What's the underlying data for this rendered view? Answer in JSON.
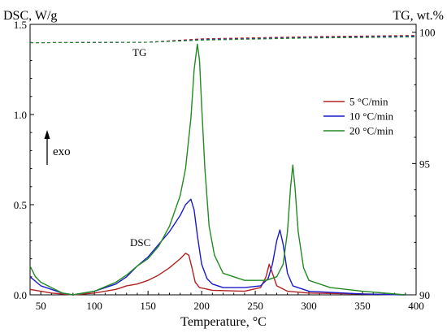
{
  "chart_data": {
    "type": "line",
    "xlabel": "Temperature, °C",
    "ylabel_left": "DSC, W/g",
    "ylabel_right": "TG, wt.%",
    "xlim": [
      40,
      400
    ],
    "ylim_left": [
      0,
      1.5
    ],
    "ylim_right": [
      90,
      100.3
    ],
    "x_ticks": [
      50,
      100,
      150,
      200,
      250,
      300,
      350,
      400
    ],
    "y_ticks_left": [
      0.0,
      0.5,
      1.0,
      1.5
    ],
    "y_tick_labels_left": [
      "0.0",
      "0.5",
      "1.0",
      "1.5"
    ],
    "y_ticks_right": [
      90,
      95,
      100
    ],
    "legend_position": "right",
    "grid": false,
    "annotations": {
      "tg_label": "TG",
      "dsc_label": "DSC",
      "exo_label": "exo"
    },
    "series": [
      {
        "name": "5 °C/min",
        "color": "#b22222",
        "dsc": [
          [
            40,
            0.03
          ],
          [
            60,
            0.01
          ],
          [
            80,
            0.0
          ],
          [
            100,
            0.01
          ],
          [
            120,
            0.03
          ],
          [
            130,
            0.05
          ],
          [
            140,
            0.06
          ],
          [
            150,
            0.08
          ],
          [
            160,
            0.11
          ],
          [
            170,
            0.15
          ],
          [
            180,
            0.2
          ],
          [
            185,
            0.23
          ],
          [
            188,
            0.22
          ],
          [
            191,
            0.15
          ],
          [
            194,
            0.07
          ],
          [
            198,
            0.04
          ],
          [
            210,
            0.025
          ],
          [
            240,
            0.02
          ],
          [
            255,
            0.04
          ],
          [
            260,
            0.1
          ],
          [
            263,
            0.17
          ],
          [
            266,
            0.12
          ],
          [
            270,
            0.05
          ],
          [
            280,
            0.02
          ],
          [
            300,
            0.01
          ],
          [
            350,
            0.005
          ],
          [
            390,
            0.0
          ]
        ],
        "tg": [
          [
            40,
            99.6
          ],
          [
            150,
            99.62
          ],
          [
            200,
            99.75
          ],
          [
            300,
            99.83
          ],
          [
            400,
            99.88
          ]
        ]
      },
      {
        "name": "10 °C/min",
        "color": "#1a1acc",
        "dsc": [
          [
            40,
            0.1
          ],
          [
            50,
            0.05
          ],
          [
            60,
            0.03
          ],
          [
            70,
            0.01
          ],
          [
            80,
            0.0
          ],
          [
            100,
            0.02
          ],
          [
            120,
            0.06
          ],
          [
            130,
            0.1
          ],
          [
            140,
            0.16
          ],
          [
            150,
            0.21
          ],
          [
            160,
            0.28
          ],
          [
            170,
            0.35
          ],
          [
            180,
            0.44
          ],
          [
            185,
            0.5
          ],
          [
            190,
            0.53
          ],
          [
            193,
            0.47
          ],
          [
            196,
            0.33
          ],
          [
            200,
            0.17
          ],
          [
            205,
            0.09
          ],
          [
            210,
            0.06
          ],
          [
            220,
            0.04
          ],
          [
            240,
            0.04
          ],
          [
            255,
            0.05
          ],
          [
            262,
            0.09
          ],
          [
            266,
            0.17
          ],
          [
            270,
            0.3
          ],
          [
            273,
            0.36
          ],
          [
            276,
            0.28
          ],
          [
            280,
            0.12
          ],
          [
            285,
            0.05
          ],
          [
            300,
            0.02
          ],
          [
            350,
            0.005
          ],
          [
            390,
            0.0
          ]
        ],
        "tg": [
          [
            40,
            99.6
          ],
          [
            150,
            99.62
          ],
          [
            200,
            99.72
          ],
          [
            300,
            99.8
          ],
          [
            400,
            99.85
          ]
        ]
      },
      {
        "name": "20 °C/min",
        "color": "#228b22",
        "dsc": [
          [
            40,
            0.16
          ],
          [
            45,
            0.1
          ],
          [
            50,
            0.07
          ],
          [
            60,
            0.04
          ],
          [
            70,
            0.01
          ],
          [
            80,
            0.0
          ],
          [
            100,
            0.02
          ],
          [
            120,
            0.07
          ],
          [
            130,
            0.11
          ],
          [
            140,
            0.16
          ],
          [
            150,
            0.2
          ],
          [
            160,
            0.27
          ],
          [
            170,
            0.38
          ],
          [
            180,
            0.55
          ],
          [
            185,
            0.7
          ],
          [
            190,
            0.98
          ],
          [
            193,
            1.25
          ],
          [
            196,
            1.39
          ],
          [
            198,
            1.3
          ],
          [
            200,
            1.05
          ],
          [
            203,
            0.7
          ],
          [
            207,
            0.38
          ],
          [
            212,
            0.22
          ],
          [
            220,
            0.12
          ],
          [
            240,
            0.08
          ],
          [
            260,
            0.08
          ],
          [
            270,
            0.1
          ],
          [
            276,
            0.17
          ],
          [
            280,
            0.35
          ],
          [
            283,
            0.6
          ],
          [
            285,
            0.72
          ],
          [
            287,
            0.6
          ],
          [
            290,
            0.35
          ],
          [
            295,
            0.15
          ],
          [
            300,
            0.08
          ],
          [
            320,
            0.04
          ],
          [
            350,
            0.02
          ],
          [
            390,
            0.0
          ]
        ],
        "tg": [
          [
            40,
            99.6
          ],
          [
            150,
            99.62
          ],
          [
            200,
            99.7
          ],
          [
            300,
            99.78
          ],
          [
            400,
            99.82
          ]
        ]
      }
    ]
  }
}
